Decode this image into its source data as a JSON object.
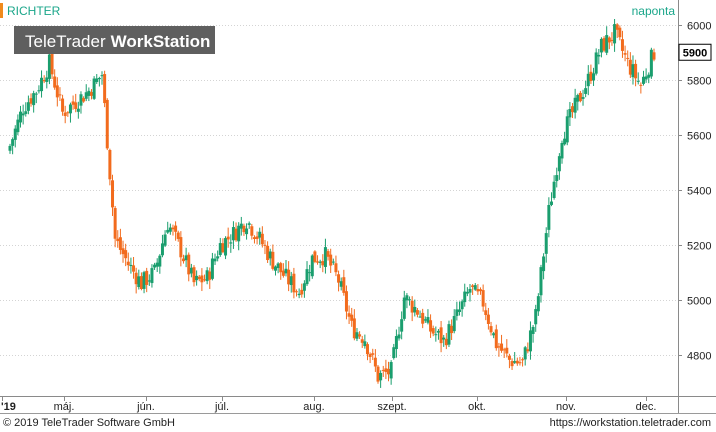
{
  "chart_data": {
    "type": "candlestick",
    "instrument": "RICHTER",
    "interval": "naponta",
    "watermark": {
      "brand": "TeleTrader",
      "product": "WorkStation"
    },
    "last_price": "5900",
    "y_ticks": [
      4800,
      5000,
      5200,
      5400,
      5600,
      5800,
      6000
    ],
    "ylim": [
      4650,
      6090
    ],
    "x_labels": [
      "'19",
      "máj.",
      "jún.",
      "júl.",
      "aug.",
      "szept.",
      "okt.",
      "nov.",
      "dec."
    ],
    "grid": true,
    "colors": {
      "up": "#1a9e6e",
      "down": "#f26b1d",
      "title": "#1aa68a",
      "last": "#000000"
    },
    "weekly_closes": [
      5560,
      5700,
      5760,
      5860,
      5680,
      5720,
      5760,
      5820,
      5220,
      5130,
      5060,
      5100,
      5280,
      5180,
      5060,
      5080,
      5200,
      5240,
      5290,
      5220,
      5140,
      5080,
      5030,
      5150,
      5160,
      5070,
      4900,
      4860,
      4720,
      4740,
      5010,
      4960,
      4890,
      4850,
      4940,
      5040,
      4990,
      4840,
      4780,
      4770,
      4940,
      5320,
      5600,
      5700,
      5800,
      5920,
      5970,
      5860,
      5780,
      5900
    ]
  },
  "footer": {
    "copyright": "© 2019 TeleTrader Software GmbH",
    "url": "https://workstation.teletrader.com"
  }
}
